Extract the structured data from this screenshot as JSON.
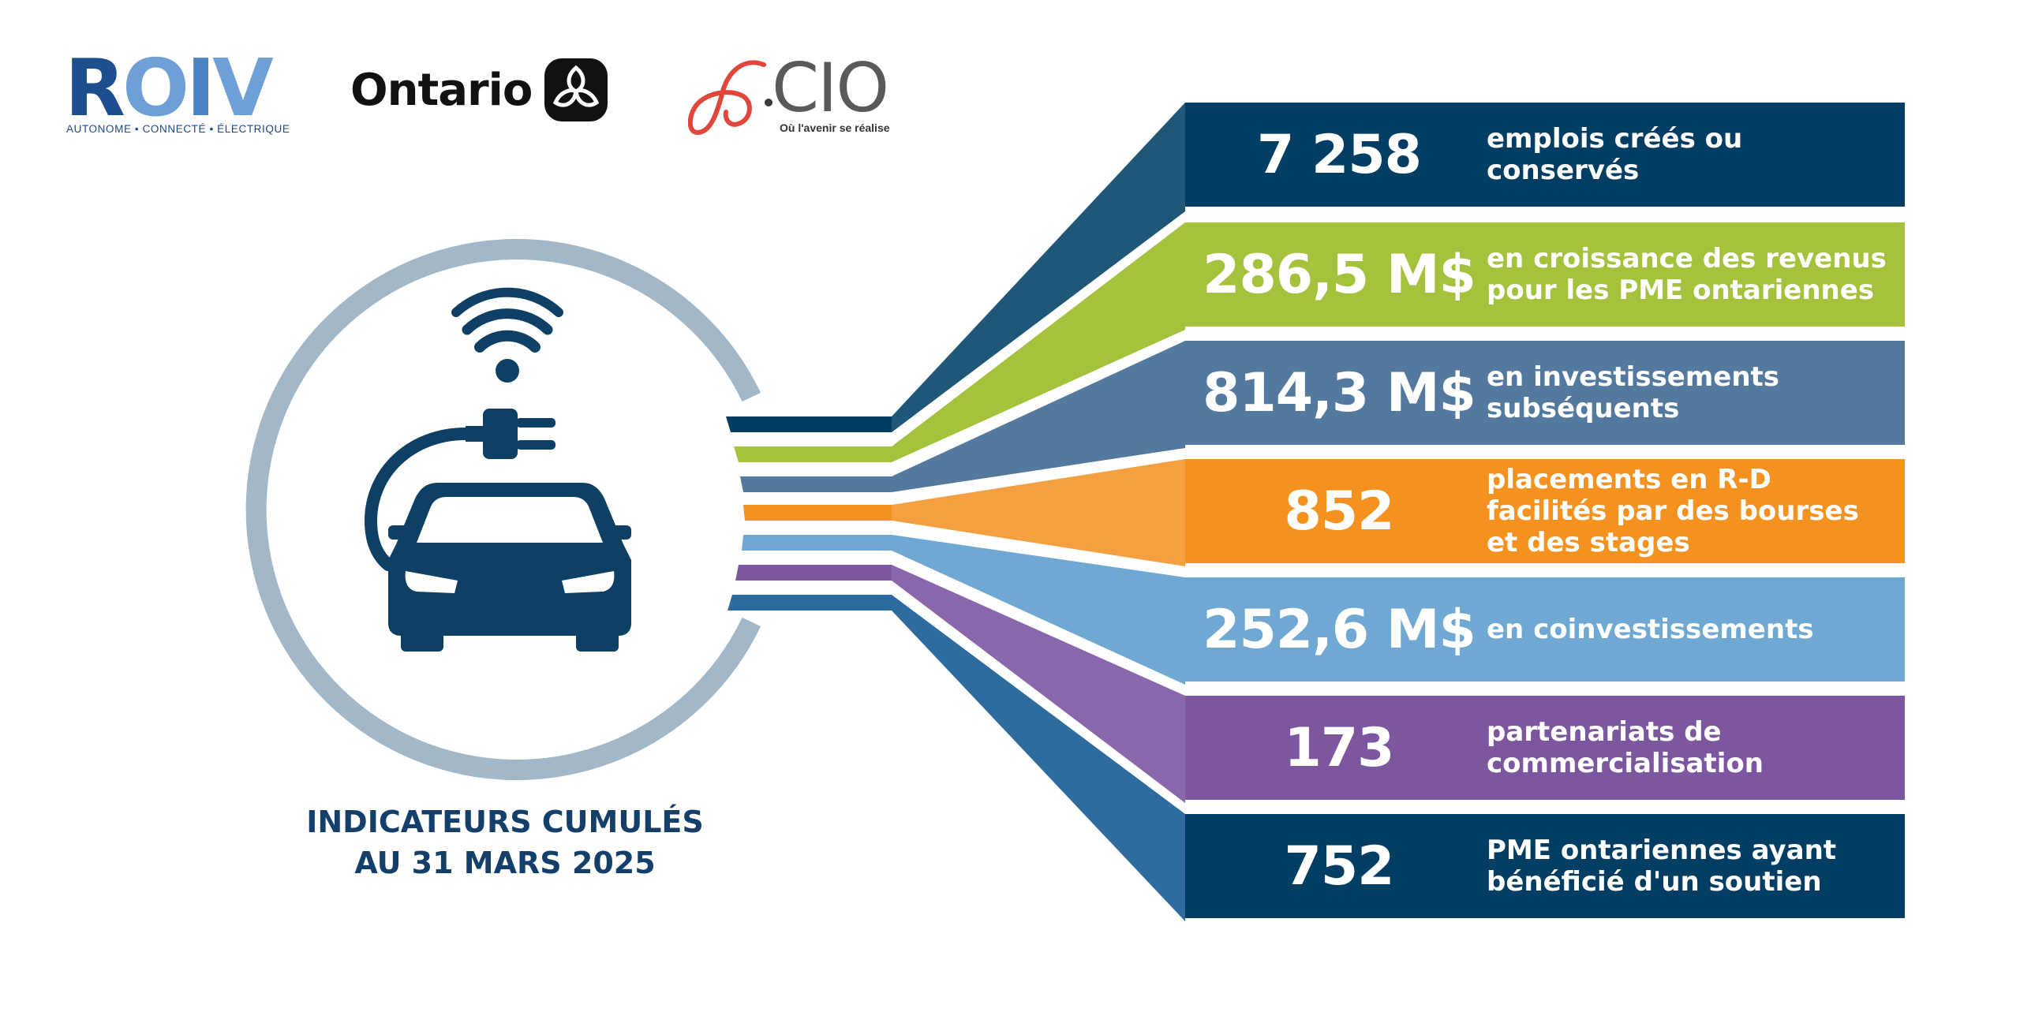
{
  "logos": {
    "roiv": {
      "wordmark": "ROIV",
      "tagline": "AUTONOME • CONNECTÉ • ÉLECTRIQUE"
    },
    "ontario": {
      "wordmark": "Ontario",
      "icon": "trillium-icon"
    },
    "oce": {
      "wordmark": "CIO",
      "tagline": "Où l'avenir se réalise"
    }
  },
  "colors": {
    "navy": "#023e64",
    "green": "#a4c23c",
    "steel": "#53799f",
    "orange": "#f5921f",
    "sky": "#6fa8d2",
    "purple": "#7c57a0",
    "blue": "#2e6b9e",
    "ring": "#a2b7c8"
  },
  "hero": {
    "icon": "electric-car-icon"
  },
  "caption": {
    "line1": "INDICATEURS CUMULÉS",
    "line2": "AU 31 MARS 2025"
  },
  "indicators": [
    {
      "value": "7 258",
      "label1": "emplois créés ou",
      "label2": "conservés",
      "label3": "",
      "color": "#023e64"
    },
    {
      "value": "286,5 M$",
      "label1": "en croissance des revenus",
      "label2": "pour les PME ontariennes",
      "label3": "",
      "color": "#a4c23c"
    },
    {
      "value": "814,3 M$",
      "label1": "en investissements",
      "label2": "subséquents",
      "label3": "",
      "color": "#53799f"
    },
    {
      "value": "852",
      "label1": "placements en R-D",
      "label2": "facilités par des bourses",
      "label3": "et des stages",
      "color": "#f5921f"
    },
    {
      "value": "252,6 M$",
      "label1": "en coinvestissements",
      "label2": "",
      "label3": "",
      "color": "#6fa8d2"
    },
    {
      "value": "173",
      "label1": "partenariats de",
      "label2": "commercialisation",
      "label3": "",
      "color": "#7c57a0"
    },
    {
      "value": "752",
      "label1": "PME ontariennes ayant",
      "label2": "bénéficié d'un soutien",
      "label3": "",
      "color": "#023e64"
    }
  ]
}
